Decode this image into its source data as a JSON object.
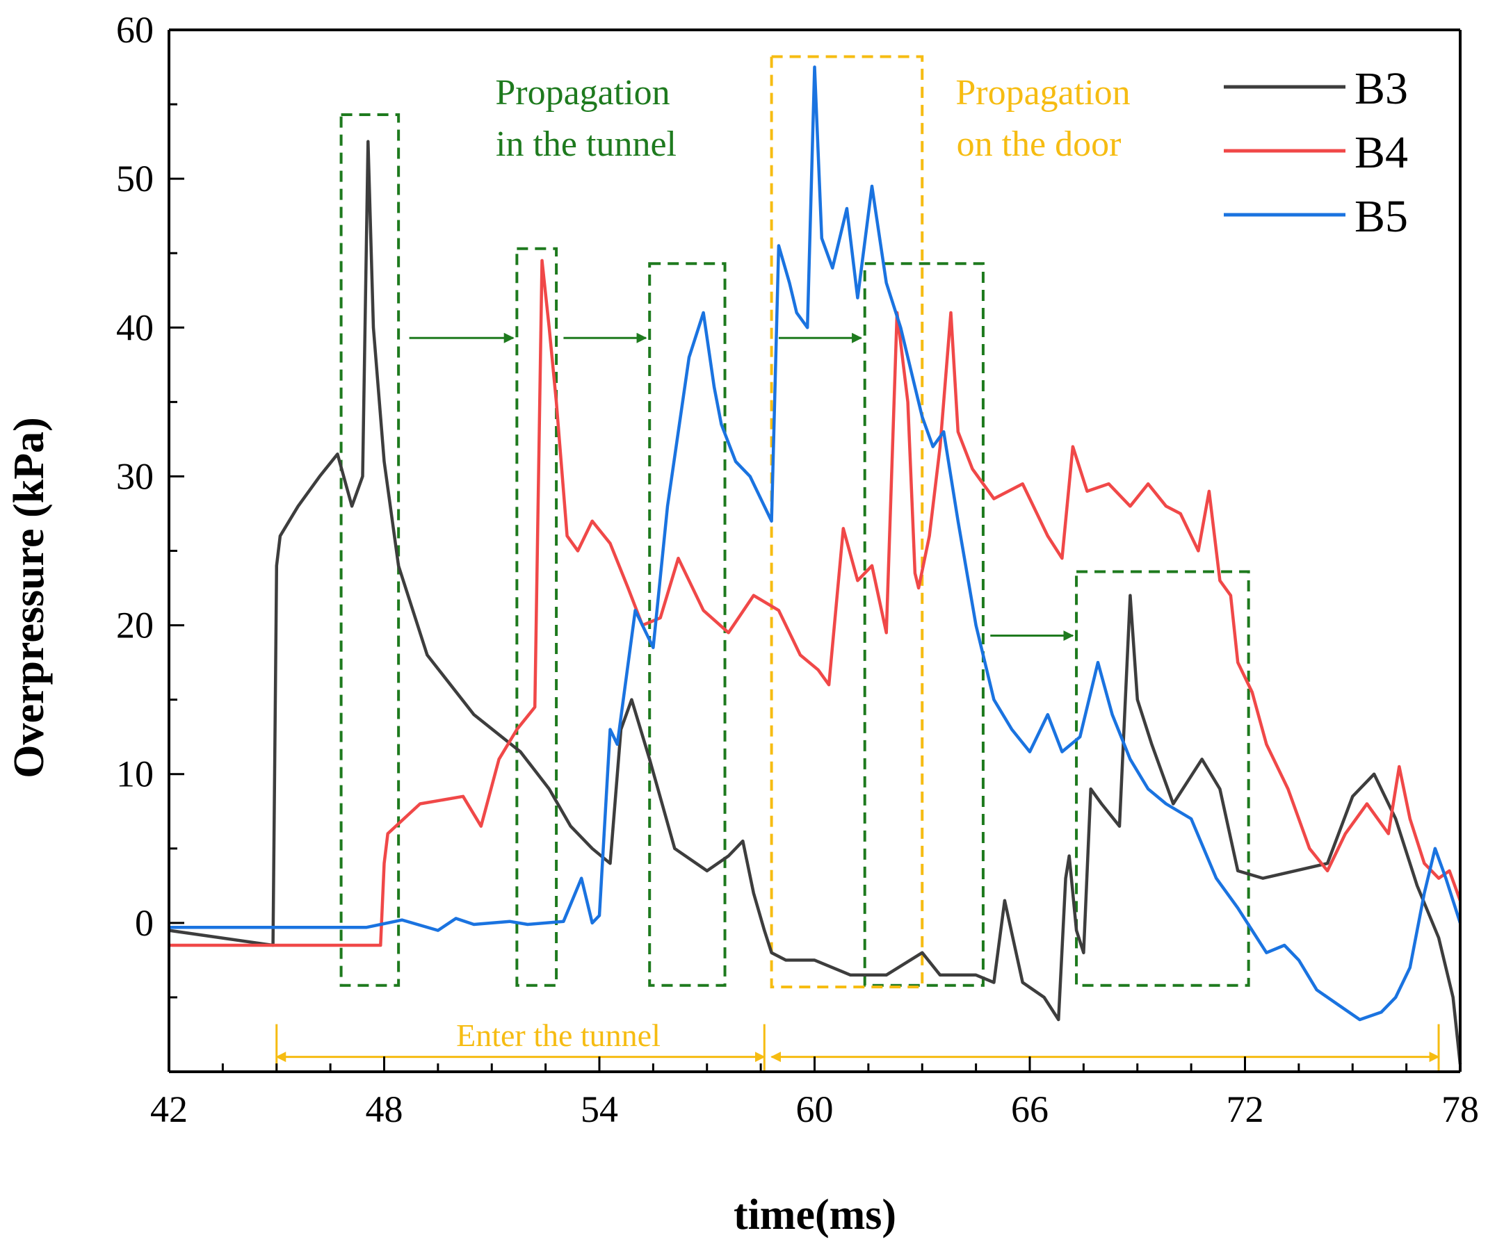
{
  "chart_data": {
    "type": "line",
    "title": "",
    "xlabel": "time(ms)",
    "ylabel": "Overpressure (kPa)",
    "xlim": [
      42,
      78
    ],
    "ylim": [
      -10,
      60
    ],
    "xticks": [
      42,
      48,
      54,
      60,
      66,
      72,
      78
    ],
    "yticks": [
      0,
      10,
      20,
      30,
      40,
      50,
      60
    ],
    "legend_position": "top-right",
    "colors": {
      "B3": "#3d3d3d",
      "B4": "#f04848",
      "B5": "#1a73e0",
      "tunnel": "#1e7a1e",
      "door": "#f6bc12"
    },
    "series": [
      {
        "name": "B3",
        "color": "#3d3d3d",
        "x": [
          42.0,
          44.9,
          45.0,
          45.1,
          45.6,
          46.2,
          46.7,
          47.1,
          47.4,
          47.55,
          47.7,
          48.0,
          48.4,
          49.2,
          50.5,
          51.8,
          52.6,
          53.2,
          53.8,
          54.3,
          54.6,
          54.9,
          55.4,
          56.1,
          57.0,
          57.6,
          58.0,
          58.3,
          58.6,
          58.8,
          59.2,
          60.0,
          61.0,
          62.0,
          63.0,
          63.5,
          64.5,
          65.0,
          65.3,
          65.8,
          66.4,
          66.8,
          67.0,
          67.1,
          67.3,
          67.5,
          67.7,
          68.0,
          68.5,
          68.8,
          69.0,
          69.4,
          70.0,
          70.8,
          71.3,
          71.8,
          72.5,
          73.4,
          74.3,
          75.0,
          75.6,
          76.2,
          76.8,
          77.4,
          77.8,
          78.0
        ],
        "values": [
          -0.5,
          -1.5,
          24.0,
          26.0,
          28.0,
          30.0,
          31.5,
          28.0,
          30.0,
          52.5,
          40.0,
          31.0,
          24.0,
          18.0,
          14.0,
          11.5,
          9.0,
          6.5,
          5.0,
          4.0,
          13.0,
          15.0,
          11.0,
          5.0,
          3.5,
          4.5,
          5.5,
          2.0,
          -0.5,
          -2.0,
          -2.5,
          -2.5,
          -3.5,
          -3.5,
          -2.0,
          -3.5,
          -3.5,
          -4.0,
          1.5,
          -4.0,
          -5.0,
          -6.5,
          3.0,
          4.5,
          -0.5,
          -2.0,
          9.0,
          8.0,
          6.5,
          22.0,
          15.0,
          12.0,
          8.0,
          11.0,
          9.0,
          3.5,
          3.0,
          3.5,
          4.0,
          8.5,
          10.0,
          7.0,
          2.5,
          -1.0,
          -5.0,
          -9.5
        ]
      },
      {
        "name": "B4",
        "color": "#f04848",
        "x": [
          42.0,
          47.9,
          48.0,
          48.1,
          49.0,
          50.2,
          50.7,
          51.2,
          51.7,
          52.2,
          52.4,
          52.6,
          52.8,
          53.1,
          53.4,
          53.8,
          54.3,
          54.8,
          55.2,
          55.7,
          56.2,
          56.9,
          57.6,
          58.3,
          59.0,
          59.6,
          60.1,
          60.4,
          60.8,
          61.2,
          61.6,
          62.0,
          62.3,
          62.6,
          62.8,
          62.9,
          63.2,
          63.5,
          63.8,
          64.0,
          64.4,
          65.0,
          65.8,
          66.5,
          66.9,
          67.2,
          67.6,
          68.2,
          68.8,
          69.3,
          69.8,
          70.2,
          70.7,
          71.0,
          71.3,
          71.6,
          71.8,
          72.2,
          72.6,
          73.2,
          73.8,
          74.3,
          74.8,
          75.4,
          76.0,
          76.3,
          76.6,
          77.0,
          77.4,
          77.7,
          78.0
        ],
        "values": [
          -1.5,
          -1.5,
          4.0,
          6.0,
          8.0,
          8.5,
          6.5,
          11.0,
          13.0,
          14.5,
          44.5,
          40.0,
          35.0,
          26.0,
          25.0,
          27.0,
          25.5,
          22.5,
          20.0,
          20.5,
          24.5,
          21.0,
          19.5,
          22.0,
          21.0,
          18.0,
          17.0,
          16.0,
          26.5,
          23.0,
          24.0,
          19.5,
          41.0,
          35.0,
          23.5,
          22.5,
          26.0,
          32.0,
          41.0,
          33.0,
          30.5,
          28.5,
          29.5,
          26.0,
          24.5,
          32.0,
          29.0,
          29.5,
          28.0,
          29.5,
          28.0,
          27.5,
          25.0,
          29.0,
          23.0,
          22.0,
          17.5,
          15.5,
          12.0,
          9.0,
          5.0,
          3.5,
          6.0,
          8.0,
          6.0,
          10.5,
          7.0,
          4.0,
          3.0,
          3.5,
          1.5
        ]
      },
      {
        "name": "B5",
        "color": "#1a73e0",
        "x": [
          42.0,
          47.5,
          48.5,
          49.5,
          50.0,
          50.5,
          51.5,
          52.0,
          53.0,
          53.5,
          53.8,
          54.0,
          54.3,
          54.5,
          55.0,
          55.5,
          55.9,
          56.2,
          56.5,
          56.9,
          57.2,
          57.4,
          57.8,
          58.2,
          58.6,
          58.8,
          59.0,
          59.3,
          59.5,
          59.8,
          60.0,
          60.2,
          60.5,
          60.9,
          61.2,
          61.6,
          62.0,
          62.4,
          62.8,
          63.0,
          63.3,
          63.6,
          64.0,
          64.5,
          65.0,
          65.5,
          66.0,
          66.5,
          66.9,
          67.4,
          67.9,
          68.3,
          68.8,
          69.3,
          69.8,
          70.5,
          71.2,
          71.8,
          72.2,
          72.6,
          73.1,
          73.5,
          74.0,
          74.6,
          75.2,
          75.8,
          76.2,
          76.6,
          77.0,
          77.3,
          77.6,
          78.0
        ],
        "values": [
          -0.3,
          -0.3,
          0.2,
          -0.5,
          0.3,
          -0.1,
          0.1,
          -0.1,
          0.1,
          3.0,
          0.0,
          0.5,
          13.0,
          12.0,
          21.0,
          18.5,
          28.0,
          33.0,
          38.0,
          41.0,
          36.0,
          33.5,
          31.0,
          30.0,
          28.0,
          27.0,
          45.5,
          43.0,
          41.0,
          40.0,
          57.5,
          46.0,
          44.0,
          48.0,
          42.0,
          49.5,
          43.0,
          40.0,
          36.0,
          34.0,
          32.0,
          33.0,
          27.0,
          20.0,
          15.0,
          13.0,
          11.5,
          14.0,
          11.5,
          12.5,
          17.5,
          14.0,
          11.0,
          9.0,
          8.0,
          7.0,
          3.0,
          1.0,
          -0.5,
          -2.0,
          -1.5,
          -2.5,
          -4.5,
          -5.5,
          -6.5,
          -6.0,
          -5.0,
          -3.0,
          2.0,
          5.0,
          3.0,
          0.0
        ]
      }
    ],
    "annotations": {
      "tunnel_label_line1": "Propagation",
      "tunnel_label_line2": "in the tunnel",
      "door_label_line1": "Propagation",
      "door_label_line2": "on the door",
      "enter_label": "Enter the tunnel"
    }
  }
}
